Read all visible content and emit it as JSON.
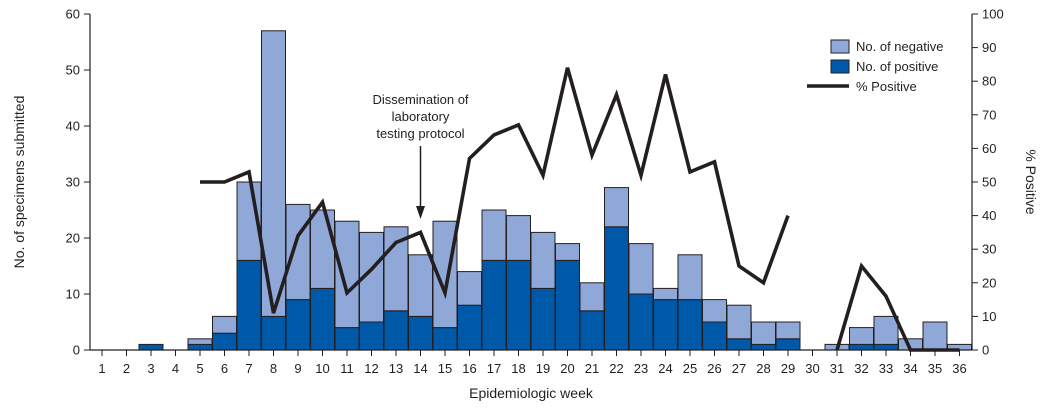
{
  "chart_data": {
    "type": "bar",
    "stacked": true,
    "categories": [
      "1",
      "2",
      "3",
      "4",
      "5",
      "6",
      "7",
      "8",
      "9",
      "10",
      "11",
      "12",
      "13",
      "14",
      "15",
      "16",
      "17",
      "18",
      "19",
      "20",
      "21",
      "22",
      "23",
      "24",
      "25",
      "26",
      "27",
      "28",
      "29",
      "30",
      "31",
      "32",
      "33",
      "34",
      "35",
      "36"
    ],
    "series": [
      {
        "name": "No. of positive",
        "color": "#0059a8",
        "values": [
          0,
          0,
          1,
          0,
          1,
          3,
          16,
          6,
          9,
          11,
          4,
          5,
          7,
          6,
          4,
          8,
          16,
          16,
          11,
          16,
          7,
          22,
          10,
          9,
          9,
          5,
          2,
          1,
          2,
          0,
          0,
          1,
          1,
          0,
          0,
          0
        ]
      },
      {
        "name": "No. of negative",
        "color": "#8fa8d8",
        "values": [
          0,
          0,
          0,
          0,
          1,
          3,
          14,
          51,
          17,
          14,
          19,
          16,
          15,
          11,
          19,
          6,
          9,
          8,
          10,
          3,
          5,
          7,
          9,
          2,
          8,
          4,
          6,
          4,
          3,
          0,
          1,
          3,
          5,
          2,
          5,
          1
        ]
      }
    ],
    "line_series": {
      "name": "% Positive",
      "color": "#231f20",
      "axis": "right",
      "segments": [
        {
          "x": [
            5,
            6,
            7,
            8,
            9,
            10,
            11,
            12,
            13,
            14,
            15,
            16,
            17,
            18,
            19,
            20,
            21,
            22,
            23,
            24,
            25,
            26,
            27,
            28,
            29
          ],
          "y": [
            50,
            50,
            53,
            11,
            34,
            44,
            17,
            24,
            32,
            35,
            17,
            57,
            64,
            67,
            52,
            84,
            58,
            76,
            52,
            82,
            53,
            56,
            25,
            20,
            40
          ]
        },
        {
          "x": [
            31,
            32,
            33,
            34,
            35,
            36
          ],
          "y": [
            0,
            25,
            16,
            0,
            0,
            0
          ]
        }
      ]
    },
    "xlabel": "Epidemiologic week",
    "ylabel": "No. of specimens submitted",
    "y2label": "% Positive",
    "ylim": [
      0,
      60
    ],
    "yticks": [
      "0",
      "10",
      "20",
      "30",
      "40",
      "50",
      "60"
    ],
    "y2lim": [
      0,
      100
    ],
    "y2ticks": [
      "0",
      "10",
      "20",
      "30",
      "40",
      "50",
      "60",
      "70",
      "80",
      "90",
      "100"
    ],
    "annotation": {
      "lines": [
        "Dissemination of",
        "laboratory",
        "testing protocol"
      ],
      "x": 14
    },
    "legend": {
      "position": "top-right",
      "items": [
        "No. of negative",
        "No. of positive",
        "% Positive"
      ]
    },
    "grid": false
  }
}
